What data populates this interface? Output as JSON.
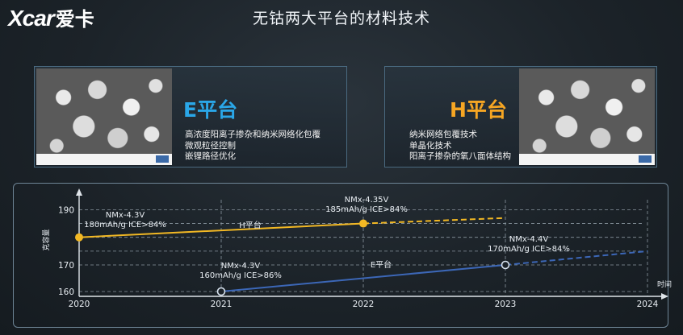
{
  "header": {
    "logo_text": "Xcar",
    "logo_cn": "爱卡",
    "title": "无钴两大平台的材料技术"
  },
  "panels": {
    "e": {
      "title": "E平台",
      "bullets": [
        "高浓度阳离子掺杂和纳米网络化包覆",
        "微观粒径控制",
        "嵌锂路径优化"
      ]
    },
    "h": {
      "title": "H平台",
      "bullets": [
        "纳米网络包覆技术",
        "单晶化技术",
        "阳离子掺杂的氧八面体结构"
      ]
    }
  },
  "colors": {
    "h_line": "#f2b824",
    "e_line": "#3c67b7",
    "e_title": "#2aa7e8",
    "h_title": "#f6a623"
  },
  "chart_data": {
    "type": "line",
    "ylabel": "克容量",
    "xlabel": "时间",
    "x_ticks": [
      "2020",
      "2021",
      "2022",
      "2023",
      "2024"
    ],
    "y_ticks": [
      160,
      170,
      190
    ],
    "series": [
      {
        "name": "H平台",
        "color": "#f2b824",
        "points": [
          {
            "x": 2020,
            "y": 180,
            "label": [
              "NMx-4.3V",
              "180mAh/g  ICE>84%"
            ]
          },
          {
            "x": 2022,
            "y": 185,
            "label": [
              "NMx-4.35V",
              "185mAh/g  ICE>84%"
            ]
          }
        ],
        "projection": [
          {
            "x": 2022,
            "y": 185
          },
          {
            "x": 2023,
            "y": 187
          }
        ]
      },
      {
        "name": "E平台",
        "color": "#3c67b7",
        "points": [
          {
            "x": 2021,
            "y": 160,
            "label": [
              "NMx-4.3V",
              "160mAh/g  ICE>86%"
            ]
          },
          {
            "x": 2023,
            "y": 170,
            "label": [
              "NMx-4.4V",
              "170mAh/g  ICE>84%"
            ]
          }
        ],
        "projection": [
          {
            "x": 2023,
            "y": 170
          },
          {
            "x": 2024,
            "y": 175
          }
        ]
      }
    ]
  }
}
